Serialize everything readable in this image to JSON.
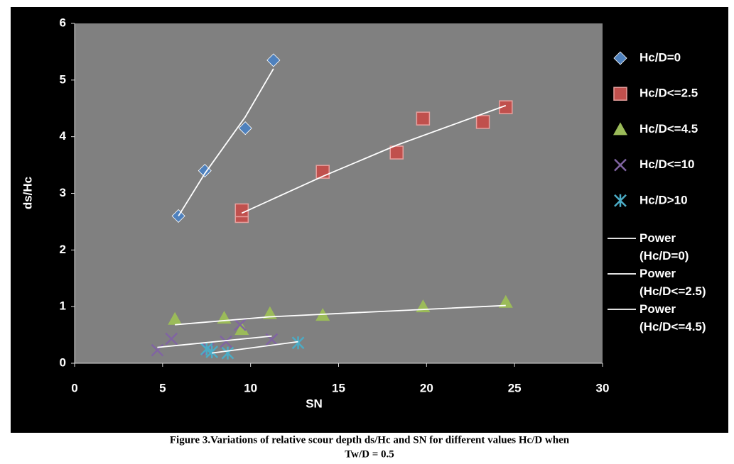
{
  "chart_data": {
    "type": "scatter",
    "x_label": "SN",
    "y_label": "ds/Hc",
    "xlim": [
      0,
      30
    ],
    "xticks": [
      0,
      5,
      10,
      15,
      20,
      25,
      30
    ],
    "ylim": [
      0,
      6
    ],
    "yticks": [
      0,
      1,
      2,
      3,
      4,
      5,
      6
    ],
    "grid": false,
    "legend": "right",
    "caption": [
      "Figure 3.Variations of relative scour depth ds/Hc and SN for different values Hc/D when",
      "Tw/D = 0.5"
    ],
    "series": [
      {
        "name": "Hc/D=0",
        "color": "#4f81bd",
        "marker": "diamond",
        "x": [
          5.9,
          7.4,
          9.7,
          11.3
        ],
        "values": [
          2.6,
          3.4,
          4.15,
          5.35
        ]
      },
      {
        "name": "Hc/D<=2.5",
        "color": "#c0504d",
        "marker": "square",
        "x": [
          9.5,
          9.5,
          14.1,
          18.3,
          19.8,
          23.2,
          24.5
        ],
        "values": [
          2.6,
          2.7,
          3.38,
          3.72,
          4.32,
          4.26,
          4.52
        ]
      },
      {
        "name": "Hc/D<=4.5",
        "color": "#9bbb59",
        "marker": "triangle",
        "x": [
          5.7,
          8.5,
          9.5,
          11.1,
          14.1,
          19.8,
          24.5
        ],
        "values": [
          0.78,
          0.8,
          0.6,
          0.88,
          0.85,
          1.0,
          1.08
        ]
      },
      {
        "name": "Hc/D<=10",
        "color": "#8064a2",
        "marker": "x",
        "x": [
          4.7,
          5.5,
          7.6,
          8.6,
          9.4,
          11.2
        ],
        "values": [
          0.23,
          0.43,
          0.25,
          0.38,
          0.68,
          0.42
        ]
      },
      {
        "name": "Hc/D>10",
        "color": "#4bacc6",
        "marker": "star",
        "x": [
          7.5,
          7.8,
          8.7,
          12.7
        ],
        "values": [
          0.25,
          0.2,
          0.18,
          0.36
        ]
      }
    ],
    "trendlines": [
      {
        "name": "Power (Hc/D=0)",
        "color": "#ffffff",
        "x": [
          5.9,
          7.4,
          9.7,
          11.3
        ],
        "values": [
          2.6,
          3.35,
          4.35,
          5.2
        ]
      },
      {
        "name": "Power (Hc/D<=2.5)",
        "color": "#ffffff",
        "x": [
          9.5,
          14.1,
          18.3,
          24.5
        ],
        "values": [
          2.65,
          3.3,
          3.85,
          4.55
        ]
      },
      {
        "name": "Power (Hc/D<=4.5)",
        "color": "#ffffff",
        "x": [
          5.7,
          11.1,
          24.5
        ],
        "values": [
          0.68,
          0.82,
          1.02
        ]
      },
      {
        "color": "#ffffff",
        "x": [
          4.7,
          11.2
        ],
        "values": [
          0.28,
          0.48
        ]
      },
      {
        "color": "#ffffff",
        "x": [
          7.8,
          12.7
        ],
        "values": [
          0.18,
          0.38
        ]
      }
    ]
  }
}
